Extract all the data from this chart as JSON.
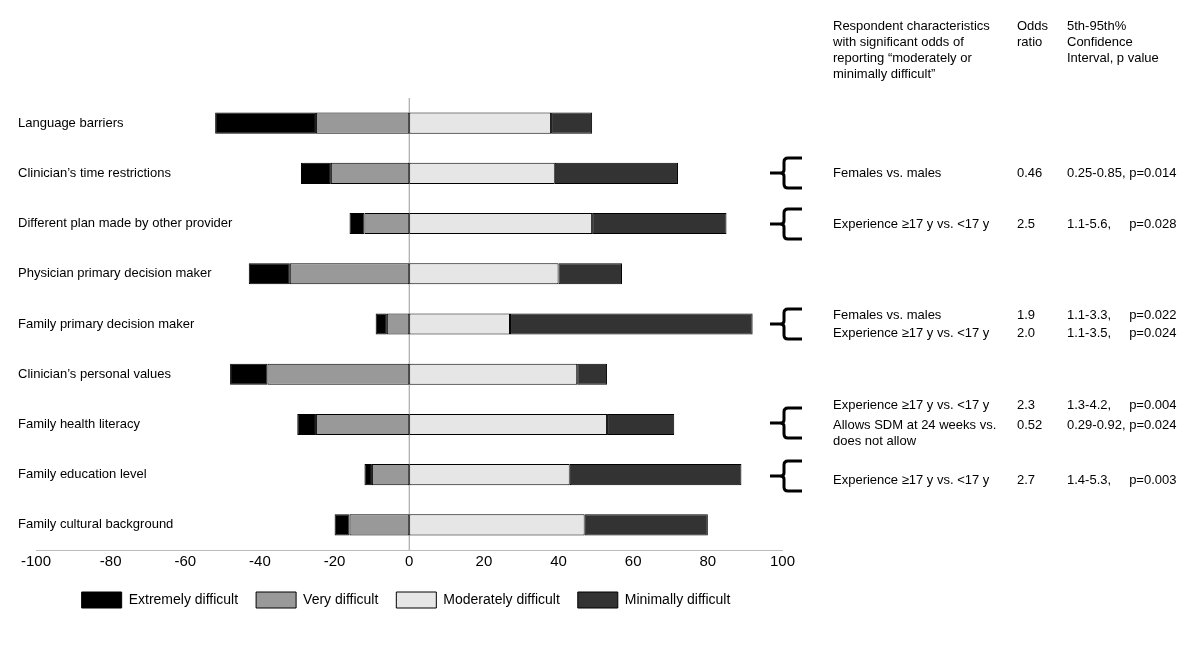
{
  "chart_data": {
    "type": "bar",
    "orientation": "horizontal",
    "stacked": true,
    "categories": [
      "Language barriers",
      "Clinician’s time restrictions",
      "Different plan made by other provider",
      "Physician primary decision maker",
      "Family primary decision maker",
      "Clinician’s personal values",
      "Family health literacy",
      "Family education level",
      "Family cultural background"
    ],
    "series": [
      {
        "name": "Very difficult",
        "color": "#999999",
        "values": [
          -25,
          -21,
          -12,
          -32,
          -6,
          -38,
          -25,
          -10,
          -16
        ]
      },
      {
        "name": "Extremely difficult",
        "color": "#000000",
        "values": [
          -27,
          -8,
          -4,
          -11,
          -3,
          -10,
          -5,
          -2,
          -4
        ]
      },
      {
        "name": "Moderately difficult",
        "color": "#e6e6e6",
        "values": [
          38,
          39,
          49,
          40,
          27,
          45,
          53,
          43,
          47
        ]
      },
      {
        "name": "Minimally difficult",
        "color": "#333333",
        "values": [
          11,
          33,
          36,
          17,
          65,
          8,
          18,
          46,
          33
        ]
      }
    ],
    "xlim": [
      -100,
      100
    ],
    "xticks": [
      -100,
      -80,
      -60,
      -40,
      -20,
      0,
      20,
      40,
      60,
      80,
      100
    ],
    "grid": false,
    "legend": "bottom",
    "ref_lines": [
      {
        "axis": "x",
        "value": 0,
        "color": "#999999"
      }
    ],
    "annotations": [
      "Respondent characteristics with significant odds of reporting “moderately or minimally difficult”",
      "Odds ratio",
      "5th-95th% Confidence Interval, p value",
      "Females vs. males",
      "0.46",
      "0.25-0.85, p=0.014",
      "Experience ≥17 y vs. <17 y",
      "2.5",
      "1.1-5.6,     p=0.028",
      "Females vs. males",
      "1.9",
      "1.1-3.3,     p=0.022",
      "Experience ≥17 y vs. <17 y",
      "2.0",
      "1.1-3.5,     p=0.024",
      "Experience ≥17 y vs. <17 y",
      "2.3",
      "1.3-4.2,     p=0.004",
      "Allows SDM at 24 weeks vs. does not allow",
      "0.52",
      "0.29-0.92, p=0.024",
      "Experience ≥17 y vs. <17 y",
      "2.7",
      "1.4-5.3,     p=0.003"
    ]
  }
}
